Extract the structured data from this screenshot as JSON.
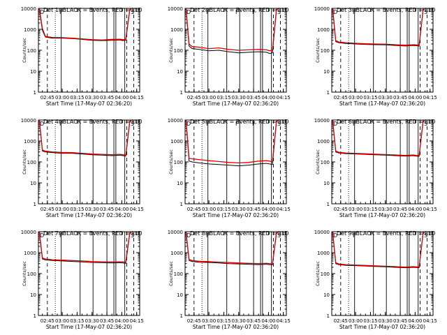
{
  "figure": {
    "xlabel": "Start Time (17-May-07 02:36:20)",
    "ylabel": "Counts/sec",
    "legend_note": "BLACK = Events, RED = LLD",
    "colors": {
      "events": "#000000",
      "lld": "#e00000",
      "axes": "#000000"
    },
    "y_tick_labels": [
      "1",
      "10",
      "100",
      "1000",
      "10000"
    ],
    "x_tick_labels": [
      "02:45",
      "03:00",
      "03:15",
      "03:30",
      "03:45",
      "04:00",
      "04:15"
    ]
  },
  "chart_data": [
    {
      "type": "line",
      "title": "Det 1r BLACK = Events, RED = LLD",
      "xlabel": "Start Time (17-May-07 02:36:20)",
      "ylabel": "Counts/sec",
      "y_scale": "log",
      "ylim": [
        1,
        10000
      ],
      "xlim": [
        "02:36",
        "04:18"
      ],
      "x": [
        "02:37",
        "02:40",
        "02:43",
        "02:50",
        "03:00",
        "03:10",
        "03:20",
        "03:30",
        "03:40",
        "03:50",
        "03:58",
        "04:01",
        "04:04",
        "04:08",
        "04:10"
      ],
      "series": [
        {
          "name": "Events",
          "values": [
            8000,
            900,
            430,
            380,
            380,
            360,
            330,
            300,
            290,
            300,
            310,
            290,
            300,
            8000,
            10000
          ]
        },
        {
          "name": "LLD",
          "values": [
            9500,
            1100,
            460,
            410,
            400,
            380,
            350,
            320,
            310,
            330,
            340,
            320,
            330,
            9000,
            10000
          ]
        }
      ],
      "annotations": [
        "D",
        "F",
        "S"
      ]
    },
    {
      "type": "line",
      "title": "Det 2r BLACK = Events, RED = LLD",
      "xlabel": "Start Time (17-May-07 02:36:20)",
      "ylabel": "Counts/sec",
      "y_scale": "log",
      "ylim": [
        1,
        10000
      ],
      "xlim": [
        "02:36",
        "04:18"
      ],
      "x": [
        "02:37",
        "02:40",
        "02:43",
        "02:50",
        "03:00",
        "03:10",
        "03:20",
        "03:30",
        "03:40",
        "03:50",
        "03:58",
        "04:01",
        "04:04",
        "04:08",
        "04:10"
      ],
      "series": [
        {
          "name": "Events",
          "values": [
            8000,
            160,
            120,
            110,
            95,
            100,
            85,
            75,
            80,
            85,
            80,
            70,
            75,
            8000,
            10000
          ]
        },
        {
          "name": "LLD",
          "values": [
            9500,
            200,
            150,
            140,
            120,
            130,
            110,
            100,
            105,
            110,
            105,
            95,
            100,
            9000,
            10000
          ]
        }
      ],
      "annotations": [
        "D",
        "F",
        "F",
        "F",
        "S"
      ]
    },
    {
      "type": "line",
      "title": "Det 3r BLACK = Events, RED = LLD",
      "xlabel": "Start Time (17-May-07 02:36:20)",
      "ylabel": "Counts/sec",
      "y_scale": "log",
      "ylim": [
        1,
        10000
      ],
      "xlim": [
        "02:36",
        "04:18"
      ],
      "x": [
        "02:37",
        "02:40",
        "02:43",
        "02:50",
        "03:00",
        "03:10",
        "03:20",
        "03:30",
        "03:40",
        "03:50",
        "03:58",
        "04:01",
        "04:04",
        "04:08",
        "04:10"
      ],
      "series": [
        {
          "name": "Events",
          "values": [
            8000,
            260,
            230,
            210,
            200,
            190,
            185,
            180,
            170,
            160,
            170,
            165,
            160,
            8000,
            10000
          ]
        },
        {
          "name": "LLD",
          "values": [
            9500,
            290,
            250,
            230,
            215,
            205,
            200,
            195,
            185,
            175,
            185,
            180,
            175,
            9000,
            10000
          ]
        }
      ],
      "annotations": [
        "D",
        "F",
        "S"
      ]
    },
    {
      "type": "line",
      "title": "Det 4r BLACK = Events, RED = LLD",
      "xlabel": "Start Time (17-May-07 02:36:20)",
      "ylabel": "Counts/sec",
      "y_scale": "log",
      "ylim": [
        1,
        10000
      ],
      "xlim": [
        "02:36",
        "04:18"
      ],
      "x": [
        "02:37",
        "02:40",
        "02:43",
        "02:50",
        "03:00",
        "03:10",
        "03:20",
        "03:30",
        "03:40",
        "03:50",
        "03:58",
        "04:01",
        "04:04",
        "04:08",
        "04:10"
      ],
      "series": [
        {
          "name": "Events",
          "values": [
            8000,
            330,
            300,
            280,
            260,
            260,
            240,
            220,
            210,
            200,
            210,
            200,
            190,
            8000,
            10000
          ]
        },
        {
          "name": "LLD",
          "values": [
            9500,
            370,
            330,
            300,
            285,
            280,
            260,
            240,
            230,
            220,
            230,
            220,
            210,
            9000,
            10000
          ]
        }
      ],
      "annotations": [
        "D",
        "F",
        "S"
      ]
    },
    {
      "type": "line",
      "title": "Det 5r BLACK = Events, RED = LLD",
      "xlabel": "Start Time (17-May-07 02:36:20)",
      "ylabel": "Counts/sec",
      "y_scale": "log",
      "ylim": [
        1,
        10000
      ],
      "xlim": [
        "02:36",
        "04:18"
      ],
      "x": [
        "02:37",
        "02:40",
        "02:43",
        "02:50",
        "03:00",
        "03:10",
        "03:20",
        "03:30",
        "03:40",
        "03:50",
        "03:58",
        "04:01",
        "04:04",
        "04:08",
        "04:10"
      ],
      "series": [
        {
          "name": "Events",
          "values": [
            8000,
            110,
            100,
            90,
            80,
            75,
            70,
            65,
            70,
            80,
            85,
            80,
            75,
            8000,
            10000
          ]
        },
        {
          "name": "LLD",
          "values": [
            9500,
            150,
            140,
            130,
            115,
            105,
            95,
            90,
            95,
            110,
            115,
            110,
            100,
            9000,
            10000
          ]
        }
      ],
      "annotations": [
        "D",
        "F",
        "F",
        "F",
        "S"
      ]
    },
    {
      "type": "line",
      "title": "Det 6r BLACK = Events, RED = LLD",
      "xlabel": "Start Time (17-May-07 02:36:20)",
      "ylabel": "Counts/sec",
      "y_scale": "log",
      "ylim": [
        1,
        10000
      ],
      "xlim": [
        "02:36",
        "04:18"
      ],
      "x": [
        "02:37",
        "02:40",
        "02:43",
        "02:50",
        "03:00",
        "03:10",
        "03:20",
        "03:30",
        "03:40",
        "03:50",
        "03:58",
        "04:01",
        "04:04",
        "04:08",
        "04:10"
      ],
      "series": [
        {
          "name": "Events",
          "values": [
            8000,
            300,
            270,
            250,
            240,
            230,
            220,
            210,
            200,
            190,
            200,
            190,
            185,
            8000,
            10000
          ]
        },
        {
          "name": "LLD",
          "values": [
            9500,
            330,
            290,
            270,
            255,
            245,
            235,
            225,
            215,
            205,
            215,
            205,
            200,
            9000,
            10000
          ]
        }
      ],
      "annotations": [
        "D",
        "F",
        "S"
      ]
    },
    {
      "type": "line",
      "title": "Det 7r BLACK = Events, RED = LLD",
      "xlabel": "Start Time (17-May-07 02:36:20)",
      "ylabel": "Counts/sec",
      "y_scale": "log",
      "ylim": [
        1,
        10000
      ],
      "xlim": [
        "02:36",
        "04:18"
      ],
      "x": [
        "02:37",
        "02:40",
        "02:43",
        "02:50",
        "03:00",
        "03:10",
        "03:20",
        "03:30",
        "03:40",
        "03:50",
        "03:58",
        "04:01",
        "04:04",
        "04:08",
        "04:10"
      ],
      "series": [
        {
          "name": "Events",
          "values": [
            8000,
            500,
            450,
            420,
            400,
            380,
            360,
            340,
            330,
            320,
            330,
            320,
            310,
            8000,
            10000
          ]
        },
        {
          "name": "LLD",
          "values": [
            9500,
            560,
            500,
            460,
            440,
            420,
            400,
            380,
            370,
            360,
            370,
            360,
            350,
            9000,
            10000
          ]
        }
      ],
      "annotations": [
        "D",
        "F",
        "S"
      ]
    },
    {
      "type": "line",
      "title": "Det 8r BLACK = Events, RED = LLD",
      "xlabel": "Start Time (17-May-07 02:36:20)",
      "ylabel": "Counts/sec",
      "y_scale": "log",
      "ylim": [
        1,
        10000
      ],
      "xlim": [
        "02:36",
        "04:18"
      ],
      "x": [
        "02:37",
        "02:40",
        "02:43",
        "02:50",
        "03:00",
        "03:10",
        "03:20",
        "03:30",
        "03:40",
        "03:50",
        "03:58",
        "04:01",
        "04:04",
        "04:08",
        "04:10"
      ],
      "series": [
        {
          "name": "Events",
          "values": [
            8000,
            420,
            380,
            350,
            340,
            320,
            300,
            290,
            280,
            270,
            280,
            270,
            265,
            8000,
            10000
          ]
        },
        {
          "name": "LLD",
          "values": [
            9500,
            470,
            420,
            390,
            375,
            355,
            335,
            320,
            310,
            300,
            310,
            300,
            290,
            9000,
            10000
          ]
        }
      ],
      "annotations": [
        "D",
        "F",
        "S"
      ]
    },
    {
      "type": "line",
      "title": "Det 9r BLACK = Events, RED = LLD",
      "xlabel": "Start Time (17-May-07 02:36:20)",
      "ylabel": "Counts/sec",
      "y_scale": "log",
      "ylim": [
        1,
        10000
      ],
      "xlim": [
        "02:36",
        "04:18"
      ],
      "x": [
        "02:37",
        "02:40",
        "02:43",
        "02:50",
        "03:00",
        "03:10",
        "03:20",
        "03:30",
        "03:40",
        "03:50",
        "03:58",
        "04:01",
        "04:04",
        "04:08",
        "04:10"
      ],
      "series": [
        {
          "name": "Events",
          "values": [
            8000,
            300,
            270,
            250,
            240,
            230,
            220,
            210,
            200,
            190,
            200,
            195,
            190,
            8000,
            10000
          ]
        },
        {
          "name": "LLD",
          "values": [
            9500,
            330,
            290,
            270,
            255,
            245,
            235,
            225,
            215,
            205,
            215,
            210,
            205,
            9000,
            10000
          ]
        }
      ],
      "annotations": [
        "D",
        "F",
        "S"
      ]
    }
  ]
}
